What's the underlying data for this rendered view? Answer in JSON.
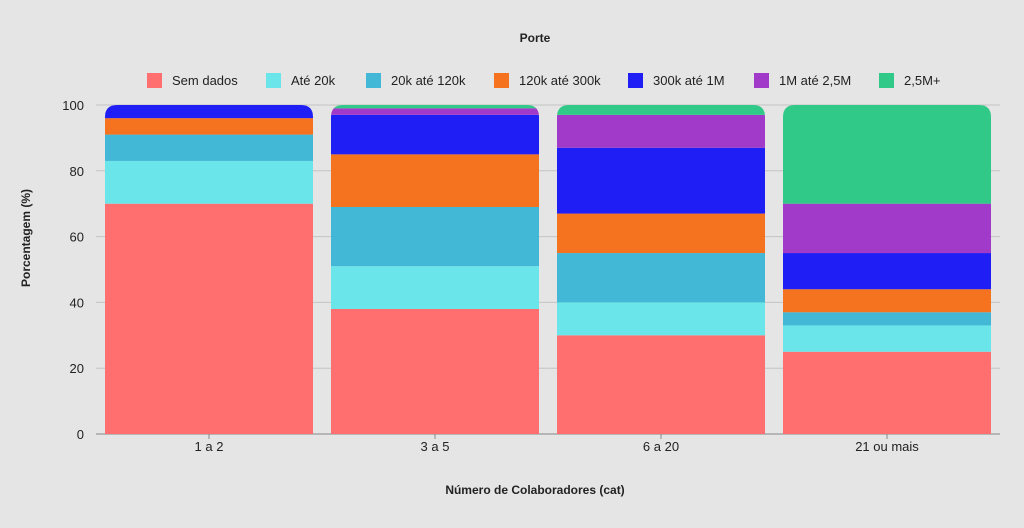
{
  "chart_data": {
    "type": "bar",
    "stacked": true,
    "title": "",
    "legend_title": "Porte",
    "xlabel": "Número de Colaboradores (cat)",
    "ylabel": "Porcentagem (%)",
    "ylim": [
      0,
      100
    ],
    "yticks": [
      0,
      20,
      40,
      60,
      80,
      100
    ],
    "grid": true,
    "legend_position": "top",
    "categories": [
      "1 a 2",
      "3 a 5",
      "6 a 20",
      "21 ou mais"
    ],
    "series": [
      {
        "name": "Sem dados",
        "color": "#ff6f6f",
        "values": [
          70,
          38,
          30,
          25
        ]
      },
      {
        "name": "Até 20k",
        "color": "#6ae6ea",
        "values": [
          13,
          13,
          10,
          8
        ]
      },
      {
        "name": "20k até 120k",
        "color": "#42b7d6",
        "values": [
          8,
          18,
          15,
          4
        ]
      },
      {
        "name": "120k até 300k",
        "color": "#f5731f",
        "values": [
          5,
          16,
          12,
          7
        ]
      },
      {
        "name": "300k até 1M",
        "color": "#1f1ff5",
        "values": [
          4,
          12,
          20,
          11
        ]
      },
      {
        "name": "1M até 2,5M",
        "color": "#a23ac9",
        "values": [
          0,
          2,
          10,
          15
        ]
      },
      {
        "name": "2,5M+",
        "color": "#30c987",
        "values": [
          0,
          1,
          3,
          30
        ]
      }
    ]
  }
}
